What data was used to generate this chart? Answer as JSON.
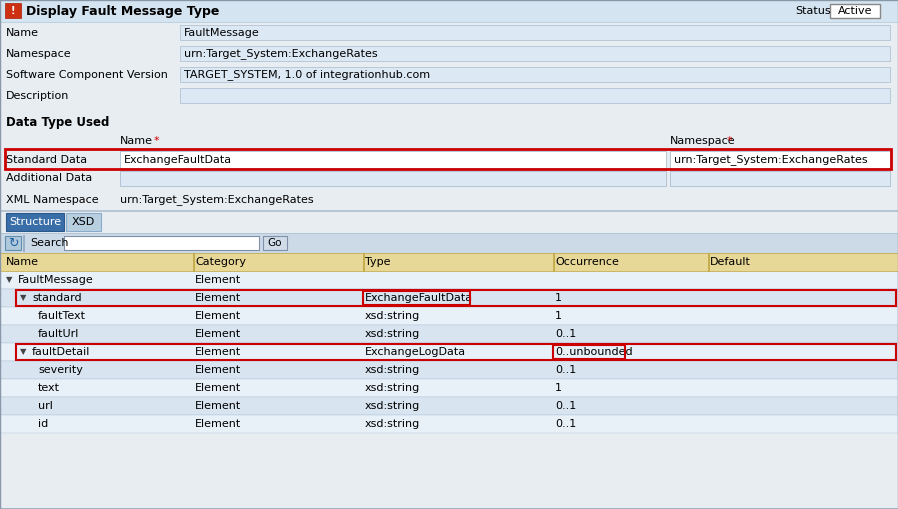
{
  "bg_color": "#e8edf2",
  "header_bg": "#dce8f0",
  "header_text": "Display Fault Message Type",
  "status_label": "Status",
  "status_value": "Active",
  "fields": [
    {
      "label": "Name",
      "value": "FaultMessage"
    },
    {
      "label": "Namespace",
      "value": "urn:Target_System:ExchangeRates"
    },
    {
      "label": "Software Component Version",
      "value": "TARGET_SYSTEM, 1.0 of integrationhub.com"
    },
    {
      "label": "Description",
      "value": ""
    }
  ],
  "section_title": "Data Type Used",
  "col_name_label": "Name",
  "col_ns_label": "Namespace",
  "std_label": "Standard Data",
  "std_name_val": "ExchangeFaultData",
  "std_ns_val": "urn:Target_System:ExchangeRates",
  "add_label": "Additional Data",
  "xml_label": "XML Namespace",
  "xml_val": "urn:Target_System:ExchangeRates",
  "tabs": [
    "Structure",
    "XSD"
  ],
  "tab_active_bg": "#3a6ea8",
  "tab_inactive_bg": "#b8cfe0",
  "search_label": "Search",
  "go_label": "Go",
  "tree_header": [
    "Name",
    "Category",
    "Type",
    "Occurrence",
    "Default"
  ],
  "tree_header_bg": "#e8d898",
  "tree_rows": [
    {
      "indent": 0,
      "expand": true,
      "name": "FaultMessage",
      "category": "Element",
      "type": "",
      "occurrence": "",
      "highlighted": false,
      "box_type": false,
      "box_occ": false
    },
    {
      "indent": 1,
      "expand": true,
      "name": "standard",
      "category": "Element",
      "type": "ExchangeFaultData",
      "occurrence": "1",
      "highlighted": true,
      "box_type": true,
      "box_occ": false
    },
    {
      "indent": 2,
      "expand": false,
      "name": "faultText",
      "category": "Element",
      "type": "xsd:string",
      "occurrence": "1",
      "highlighted": false,
      "box_type": false,
      "box_occ": false
    },
    {
      "indent": 2,
      "expand": false,
      "name": "faultUrl",
      "category": "Element",
      "type": "xsd:string",
      "occurrence": "0..1",
      "highlighted": false,
      "box_type": false,
      "box_occ": false
    },
    {
      "indent": 1,
      "expand": true,
      "name": "faultDetail",
      "category": "Element",
      "type": "ExchangeLogData",
      "occurrence": "0..unbounded",
      "highlighted": true,
      "box_type": false,
      "box_occ": true
    },
    {
      "indent": 2,
      "expand": false,
      "name": "severity",
      "category": "Element",
      "type": "xsd:string",
      "occurrence": "0..1",
      "highlighted": false,
      "box_type": false,
      "box_occ": false
    },
    {
      "indent": 2,
      "expand": false,
      "name": "text",
      "category": "Element",
      "type": "xsd:string",
      "occurrence": "1",
      "highlighted": false,
      "box_type": false,
      "box_occ": false
    },
    {
      "indent": 2,
      "expand": false,
      "name": "url",
      "category": "Element",
      "type": "xsd:string",
      "occurrence": "0..1",
      "highlighted": false,
      "box_type": false,
      "box_occ": false
    },
    {
      "indent": 2,
      "expand": false,
      "name": "id",
      "category": "Element",
      "type": "xsd:string",
      "occurrence": "0..1",
      "highlighted": false,
      "box_type": false,
      "box_occ": false
    }
  ],
  "red_border": "#cc0000",
  "field_input_bg": "#dce8f4",
  "white": "#ffffff",
  "row_bg_a": "#dce8f4",
  "row_bg_b": "#ccd8e8",
  "tree_row_alt_a": "#e8f0f8",
  "tree_row_alt_b": "#d8e4f0"
}
